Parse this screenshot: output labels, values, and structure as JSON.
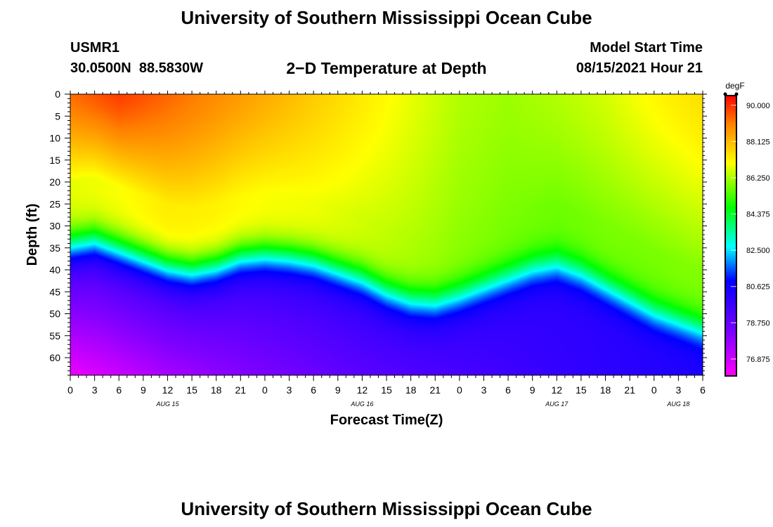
{
  "header": {
    "title": "University of Southern Mississippi Ocean Cube",
    "station_id": "USMR1",
    "coordinates": "30.0500N  88.5830W",
    "subtitle": "2−D Temperature at Depth",
    "model_start_label": "Model Start Time",
    "model_start_time": "08/15/2021 Hour 21"
  },
  "footer": {
    "title": "University of Southern Mississippi Ocean Cube"
  },
  "chart_data": {
    "type": "heatmap",
    "title": "2-D Temperature at Depth",
    "xlabel": "Forecast Time(Z)",
    "ylabel": "Depth (ft)",
    "x_range_hours": [
      0,
      78
    ],
    "y_range_ft": [
      0,
      64
    ],
    "x_tick_labels": [
      "0",
      "3",
      "6",
      "9",
      "12",
      "15",
      "18",
      "21",
      "0",
      "3",
      "6",
      "9",
      "12",
      "15",
      "18",
      "21",
      "0",
      "3",
      "6",
      "9",
      "12",
      "15",
      "18",
      "21",
      "0",
      "3",
      "6"
    ],
    "date_labels": [
      {
        "text": "AUG 15",
        "hour": 12
      },
      {
        "text": "AUG 16",
        "hour": 36
      },
      {
        "text": "AUG 17",
        "hour": 60
      },
      {
        "text": "AUG 18",
        "hour": 75
      }
    ],
    "y_tick_labels": [
      "0",
      "5",
      "10",
      "15",
      "20",
      "25",
      "30",
      "35",
      "40",
      "45",
      "50",
      "55",
      "60"
    ],
    "colorbar": {
      "unit": "degF",
      "min": 76,
      "max": 90.5,
      "tick_labels": [
        "90.000",
        "88.125",
        "86.250",
        "84.375",
        "82.500",
        "80.625",
        "78.750",
        "76.875"
      ],
      "colors": {
        "magenta": "#ff00ff",
        "violet": "#8000ff",
        "blue": "#0000ff",
        "cyan": "#00ffff",
        "green": "#00ff00",
        "yellow": "#ffff00",
        "orange": "#ff8000",
        "red": "#ff0000"
      }
    },
    "thermocline_depth_ft": {
      "hours": [
        0,
        3,
        6,
        9,
        12,
        15,
        18,
        21,
        24,
        27,
        30,
        33,
        36,
        39,
        42,
        45,
        48,
        51,
        54,
        57,
        60,
        63,
        66,
        69,
        72,
        75,
        78
      ],
      "depth": [
        34,
        33,
        35,
        37,
        39,
        40,
        39,
        37,
        36.5,
        37,
        38,
        40,
        42,
        45,
        47,
        47.5,
        46,
        44,
        42,
        40,
        39,
        41,
        44,
        47,
        50,
        52,
        54
      ]
    },
    "surface_temperature_degF": {
      "hours": [
        0,
        6,
        12,
        18,
        24,
        30,
        36,
        42,
        48,
        54,
        60,
        66,
        72,
        78
      ],
      "temp": [
        89.2,
        89.8,
        89.3,
        88.8,
        88.3,
        87.8,
        87.3,
        86.8,
        86.3,
        86.1,
        86.3,
        86.6,
        87.1,
        87.5
      ]
    },
    "upper_layer_temperature_degF": {
      "hours": [
        0,
        6,
        12,
        18,
        24,
        30,
        36,
        42,
        48,
        54,
        60,
        66,
        72,
        78
      ],
      "temp": [
        86.8,
        87.0,
        87.3,
        87.2,
        87.0,
        86.9,
        86.6,
        86.3,
        86.0,
        85.8,
        85.7,
        85.8,
        85.8,
        85.9
      ]
    },
    "bottom_temperature_degF": {
      "hours": [
        0,
        12,
        24,
        36,
        48,
        60,
        78
      ],
      "temp": [
        76.3,
        77.5,
        78.3,
        79.0,
        79.4,
        79.8,
        80.3
      ]
    }
  }
}
